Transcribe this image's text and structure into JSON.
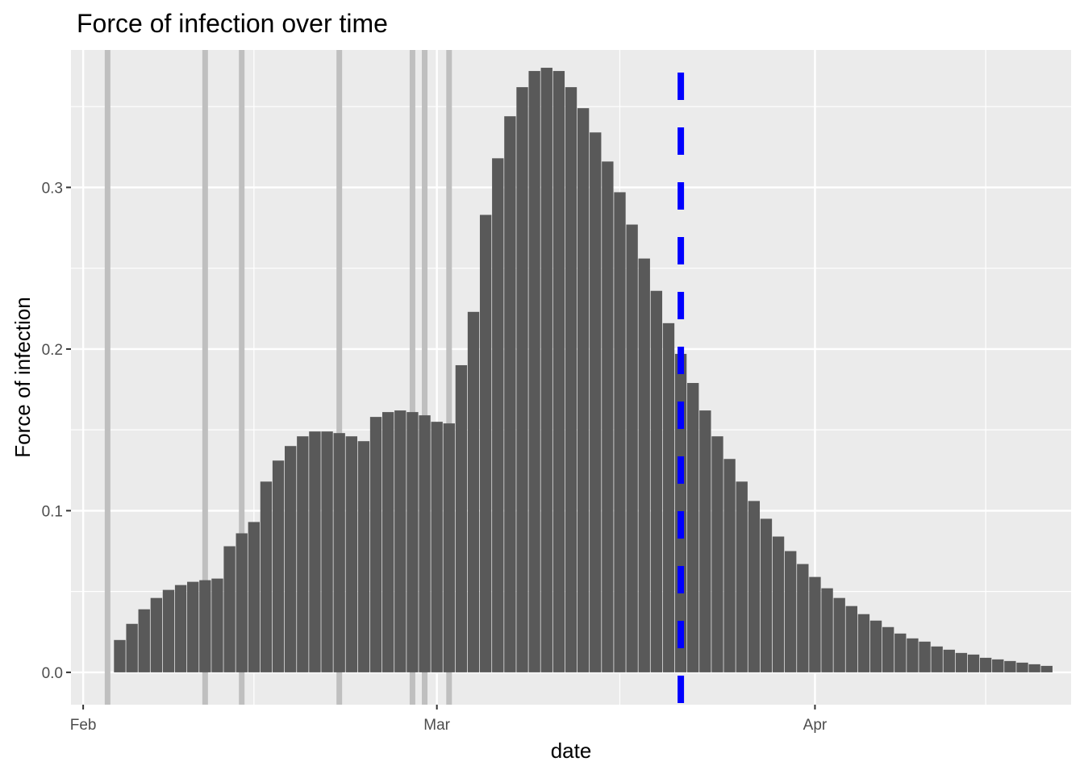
{
  "chart_data": {
    "type": "bar",
    "title": "Force of infection over time",
    "xlabel": "date",
    "ylabel": "Force of infection",
    "x_start": "2020-02-04",
    "xlim": [
      "2020-01-31",
      "2020-04-22"
    ],
    "ylim": [
      -0.02,
      0.385
    ],
    "x_ticks": [
      {
        "date": "2020-02-01",
        "label": "Feb"
      },
      {
        "date": "2020-03-01",
        "label": "Mar"
      },
      {
        "date": "2020-04-01",
        "label": "Apr"
      }
    ],
    "x_minor_ticks": [
      "2020-02-15",
      "2020-03-16",
      "2020-04-15"
    ],
    "y_ticks": [
      {
        "value": 0.0,
        "label": "0.0"
      },
      {
        "value": 0.1,
        "label": "0.1"
      },
      {
        "value": 0.2,
        "label": "0.2"
      },
      {
        "value": 0.3,
        "label": "0.3"
      }
    ],
    "y_minor_ticks": [
      0.05,
      0.15,
      0.25,
      0.35
    ],
    "grid": true,
    "bar_color": "#595959",
    "panel_color": "#ebebeb",
    "values": [
      0.02,
      0.03,
      0.039,
      0.046,
      0.051,
      0.054,
      0.056,
      0.057,
      0.058,
      0.078,
      0.086,
      0.093,
      0.118,
      0.131,
      0.14,
      0.146,
      0.149,
      0.149,
      0.148,
      0.146,
      0.143,
      0.158,
      0.161,
      0.162,
      0.161,
      0.159,
      0.155,
      0.154,
      0.19,
      0.223,
      0.283,
      0.318,
      0.344,
      0.362,
      0.372,
      0.374,
      0.372,
      0.362,
      0.349,
      0.334,
      0.316,
      0.297,
      0.277,
      0.256,
      0.236,
      0.216,
      0.197,
      0.179,
      0.162,
      0.146,
      0.132,
      0.118,
      0.106,
      0.095,
      0.084,
      0.075,
      0.067,
      0.059,
      0.052,
      0.046,
      0.041,
      0.036,
      0.032,
      0.028,
      0.024,
      0.021,
      0.019,
      0.016,
      0.014,
      0.012,
      0.011,
      0.009,
      0.008,
      0.007,
      0.006,
      0.005,
      0.004
    ],
    "gray_vlines": [
      "2020-02-03",
      "2020-02-11",
      "2020-02-14",
      "2020-02-22",
      "2020-02-28",
      "2020-02-29",
      "2020-03-02"
    ],
    "gray_vline_color": "#bfbfbf",
    "blue_vline": "2020-03-21",
    "blue_vline_color": "#0000ff"
  }
}
